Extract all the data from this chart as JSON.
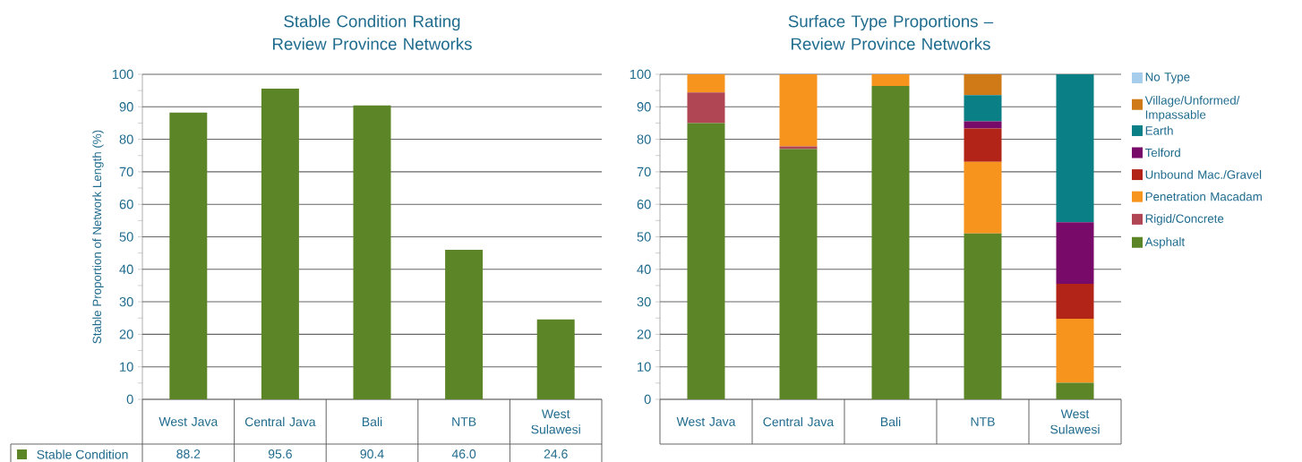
{
  "chart_data": [
    {
      "type": "bar",
      "title": "Stable Condition Rating Review Province Networks",
      "ylabel": "Stable Proportion of Network Length (%)",
      "categories": [
        "West Java",
        "Central Java",
        "Bali",
        "NTB",
        "West Sulawesi"
      ],
      "series": [
        {
          "name": "Stable Condition",
          "color": "#5b8526",
          "values": [
            88.2,
            95.6,
            90.4,
            46.0,
            24.6
          ],
          "value_labels": [
            "88.2",
            "95.6",
            "90.4",
            "46.0",
            "24.6"
          ]
        }
      ],
      "ylim": [
        0,
        100
      ],
      "yticks": [
        0,
        {
          "value": 5,
          "label": null
        },
        10,
        {
          "value": 15,
          "label": null
        },
        20,
        {
          "value": 25,
          "label": null
        },
        30,
        {
          "value": 35,
          "label": null
        },
        40,
        {
          "value": 45,
          "label": null
        },
        50,
        {
          "value": 55,
          "label": null
        },
        60,
        {
          "value": 65,
          "label": null
        },
        70,
        {
          "value": 75,
          "label": null
        },
        80,
        {
          "value": 85,
          "label": null
        },
        90,
        {
          "value": 95,
          "label": null
        },
        100
      ],
      "grid": "y",
      "legend": "bottom left"
    },
    {
      "type": "bar",
      "stacked": true,
      "title": "Surface Type Proportions – Review Province Networks",
      "categories": [
        "West Java",
        "Central Java",
        "Bali",
        "NTB",
        "West Sulawesi"
      ],
      "series": [
        {
          "name": "Asphalt",
          "color": "#5b8526",
          "values": [
            85.0,
            77.0,
            96.4,
            51.0,
            5.1
          ]
        },
        {
          "name": "Rigid/Concrete",
          "color": "#b04553",
          "values": [
            9.4,
            0.8,
            0,
            0,
            0
          ]
        },
        {
          "name": "Penetration Macadam",
          "color": "#f7941e",
          "values": [
            5.6,
            22.2,
            3.6,
            22.1,
            19.7
          ]
        },
        {
          "name": "Unbound Mac./Gravel",
          "color": "#b22418",
          "values": [
            0,
            0,
            0,
            10.2,
            10.7
          ]
        },
        {
          "name": "Telford",
          "color": "#780a69",
          "values": [
            0,
            0,
            0,
            2.2,
            19.0
          ]
        },
        {
          "name": "Earth",
          "color": "#0b7f86",
          "values": [
            0,
            0,
            0,
            8.1,
            45.5
          ]
        },
        {
          "name": "Village/Unformed/ Impassable",
          "color": "#cf7a17",
          "values": [
            0,
            0,
            0,
            6.4,
            0
          ]
        },
        {
          "name": "No Type",
          "color": "#a6cdec",
          "values": [
            0,
            0,
            0,
            0,
            0
          ]
        }
      ],
      "ylim": [
        0,
        100
      ],
      "yticks": [
        0,
        {
          "value": 5,
          "label": null
        },
        10,
        {
          "value": 15,
          "label": null
        },
        20,
        {
          "value": 25,
          "label": null
        },
        30,
        {
          "value": 35,
          "label": null
        },
        40,
        {
          "value": 45,
          "label": null
        },
        50,
        {
          "value": 55,
          "label": null
        },
        60,
        {
          "value": 65,
          "label": null
        },
        70,
        {
          "value": 75,
          "label": null
        },
        80,
        {
          "value": 85,
          "label": null
        },
        90,
        {
          "value": 95,
          "label": null
        },
        100
      ],
      "grid": "y",
      "legend": "right"
    }
  ]
}
